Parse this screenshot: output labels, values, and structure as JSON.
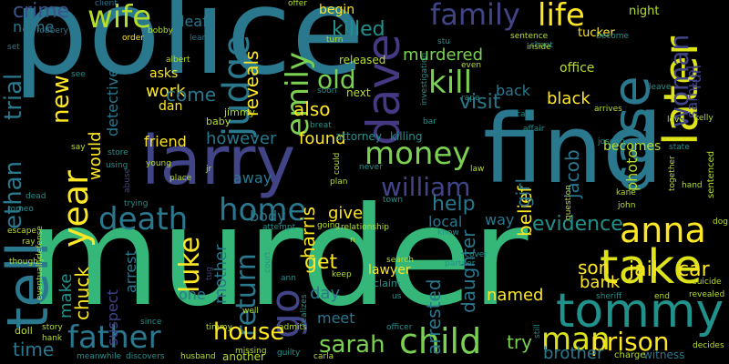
{
  "words": {
    "police": "police",
    "murder": "murder",
    "find": "find",
    "larry": "larry",
    "tommy": "tommy",
    "tell": "tell",
    "take": "take",
    "case": "case",
    "later": "later",
    "dave": "dave",
    "judge": "judge",
    "wife": "wife",
    "crime": "crime",
    "family": "family",
    "life": "life",
    "killed": "killed",
    "murdered": "murdered",
    "money": "money",
    "emily": "emily",
    "kill": "kill",
    "old": "old",
    "new": "new",
    "year": "year",
    "death": "death",
    "home": "home",
    "william": "william",
    "anna": "anna",
    "child": "child",
    "father": "father",
    "house": "house",
    "man": "man",
    "prison": "prison",
    "sarah": "sarah",
    "time": "time",
    "go": "go",
    "ethan": "ethan",
    "trial": "trial",
    "work": "work",
    "jail": "jail",
    "car": "car",
    "luke": "luke",
    "return": "return",
    "get": "get",
    "son": "son",
    "bank": "bank",
    "named": "named",
    "try": "try",
    "brother": "brother",
    "help": "help",
    "visit": "visit",
    "black": "black",
    "woman": "woman",
    "run": "run",
    "evidence": "evidence",
    "however": "however",
    "found": "found",
    "friend": "friend",
    "come": "come",
    "also": "also",
    "back": "back",
    "office": "office",
    "begin": "begin",
    "leaf": "leaf",
    "name": "name",
    "tucker": "tucker",
    "night": "night",
    "dan": "dan",
    "detective": "detective",
    "reveals": "reveals",
    "asks": "asks",
    "give": "give",
    "harris": "harris",
    "would": "would",
    "chuck": "chuck",
    "make": "make",
    "mother": "mother",
    "day": "day",
    "one": "one",
    "meet": "meet",
    "arrested": "arrested",
    "daughter": "daughter",
    "belief": "belief",
    "jacob": "jacob",
    "becomes": "becomes",
    "local": "local",
    "way": "way",
    "girl": "girl",
    "body": "body",
    "away": "away",
    "suspect": "suspect",
    "arrest": "arrest",
    "lawyer": "lawyer",
    "witness": "witness",
    "charge": "charge",
    "samuel": "samuel",
    "photo": "photo",
    "attorney": "attorney",
    "killing": "killing",
    "next": "next",
    "released": "released",
    "soon": "soon",
    "albert": "albert",
    "jimmy": "jimmy",
    "baby": "baby",
    "robbery": "robbery",
    "client": "client",
    "order": "order",
    "bobby": "bobby",
    "learns": "learns",
    "like": "like",
    "turn": "turn",
    "set": "set",
    "offer": "offer",
    "sentence": "sentence",
    "shoot": "shoot",
    "become": "become",
    "sentenced": "sentenced",
    "leave": "leave",
    "arrives": "arrives",
    "love": "love",
    "kelly": "kelly",
    "joseph": "joseph",
    "state": "state",
    "hand": "hand",
    "john": "john",
    "dog": "dog",
    "kane": "kane",
    "suicide": "suicide",
    "revealed": "revealed",
    "decides": "decides",
    "sheriff": "sheriff",
    "end": "end",
    "still": "still",
    "officer": "officer",
    "admits": "admits",
    "missing": "missing",
    "timmy": "timmy",
    "husband": "husband",
    "another": "another",
    "guilty": "guilty",
    "carla": "carla",
    "discovers": "discovers",
    "meanwhile": "meanwhile",
    "since": "since",
    "story": "story",
    "doll": "doll",
    "hank": "hank",
    "ray": "ray",
    "escape": "escape",
    "though": "though",
    "defense": "defense",
    "eventually": "eventually",
    "romeo": "romeo",
    "dead": "dead",
    "say": "say",
    "store": "store",
    "using": "using",
    "young": "young",
    "place": "place",
    "trying": "trying",
    "jr": "jr",
    "could": "could",
    "plan": "plan",
    "never": "never",
    "relationship": "relationship",
    "going": "going",
    "court": "court",
    "attempt": "attempt",
    "keep": "keep",
    "search": "search",
    "claim": "claim",
    "us": "us",
    "partner": "partner",
    "know": "know",
    "town": "town",
    "law": "law",
    "question": "question",
    "affair": "affair",
    "call": "call",
    "bar": "bar",
    "rape": "rape",
    "breat": "breat",
    "stu": "stu",
    "inside": "inside",
    "investigation": "investigation",
    "even": "even",
    "see": "see",
    "ann": "ann",
    "well": "well",
    "realizes": "realizes",
    "abuse": "abuse",
    "together": "together",
    "cover": "cover",
    "n": "n",
    "tug": "tug",
    "would2": "would"
  }
}
